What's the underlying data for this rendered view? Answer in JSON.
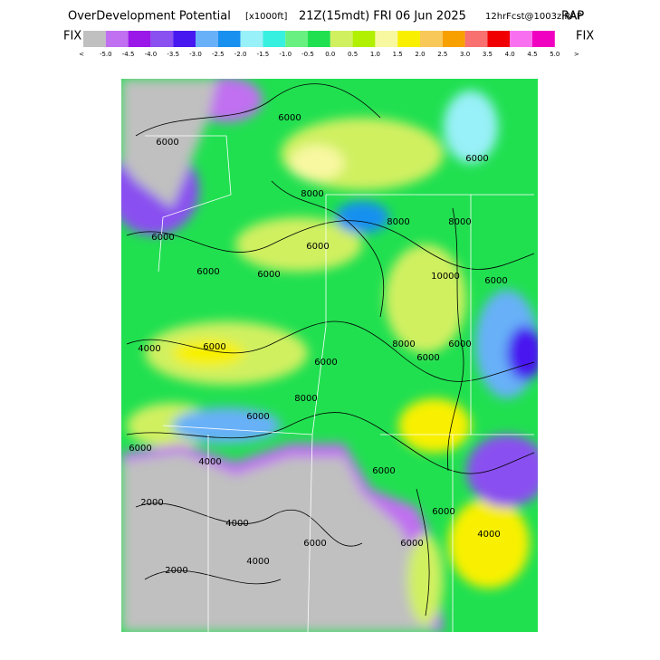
{
  "header": {
    "title": "OverDevelopment Potential",
    "units": "[x1000ft]",
    "valid": "21Z(15mdt) FRI 06 Jun 2025",
    "forecast": "12hrFcst@1003z RAP"
  },
  "legend": {
    "left_label": "FIX",
    "right_label": "FIX",
    "colors": [
      "#c0c0c0",
      "#c070f0",
      "#9a18e8",
      "#8a50f0",
      "#4818f0",
      "#68b0f8",
      "#1890f0",
      "#98f0f8",
      "#38f0e0",
      "#68f080",
      "#20e050",
      "#d0f060",
      "#b0f000",
      "#f8f8a0",
      "#f8f000",
      "#f8c858",
      "#f8a000",
      "#f87070",
      "#f00000",
      "#f870f0",
      "#f000c0"
    ],
    "labels": [
      "<",
      "-5.0",
      "-4.5",
      "-4.0",
      "-3.5",
      "-3.0",
      "-2.5",
      "-2.0",
      "-1.5",
      "-1.0",
      "-0.5",
      "0.0",
      "0.5",
      "1.0",
      "1.5",
      "2.0",
      "2.5",
      "3.0",
      "3.5",
      "4.0",
      "4.5",
      "5.0",
      ">"
    ]
  },
  "map": {
    "contour_labels": [
      "6000",
      "6000",
      "6000",
      "8000",
      "6000",
      "6000",
      "8000",
      "6000",
      "6000",
      "8000",
      "6000",
      "10000",
      "6000",
      "4000",
      "6000",
      "8000",
      "6000",
      "6000",
      "8000",
      "6000",
      "6000",
      "4000",
      "2000",
      "6000",
      "4000",
      "6000",
      "6000",
      "4000",
      "4000",
      "2000",
      "6000"
    ]
  }
}
